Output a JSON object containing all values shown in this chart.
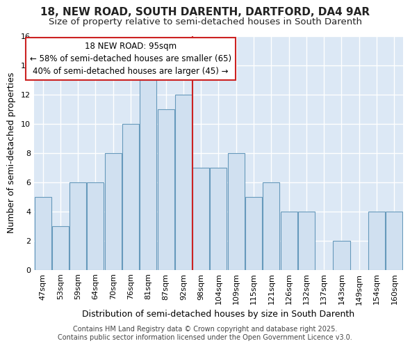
{
  "title": "18, NEW ROAD, SOUTH DARENTH, DARTFORD, DA4 9AR",
  "subtitle": "Size of property relative to semi-detached houses in South Darenth",
  "xlabel": "Distribution of semi-detached houses by size in South Darenth",
  "ylabel": "Number of semi-detached properties",
  "bar_labels": [
    "47sqm",
    "53sqm",
    "59sqm",
    "64sqm",
    "70sqm",
    "76sqm",
    "81sqm",
    "87sqm",
    "92sqm",
    "98sqm",
    "104sqm",
    "109sqm",
    "115sqm",
    "121sqm",
    "126sqm",
    "132sqm",
    "137sqm",
    "143sqm",
    "149sqm",
    "154sqm",
    "160sqm"
  ],
  "bar_values": [
    5,
    3,
    6,
    6,
    8,
    10,
    13,
    11,
    12,
    7,
    7,
    8,
    5,
    6,
    4,
    4,
    0,
    2,
    0,
    4,
    4
  ],
  "bar_color": "#d0e0f0",
  "bar_edge_color": "#6699bb",
  "red_line_index": 9,
  "annotation_title": "18 NEW ROAD: 95sqm",
  "annotation_line1": "← 58% of semi-detached houses are smaller (65)",
  "annotation_line2": "40% of semi-detached houses are larger (45) →",
  "annotation_box_facecolor": "#ffffff",
  "annotation_box_edgecolor": "#cc2222",
  "red_line_color": "#cc2222",
  "ylim": [
    0,
    16
  ],
  "yticks": [
    0,
    2,
    4,
    6,
    8,
    10,
    12,
    14,
    16
  ],
  "chart_bg_color": "#dce8f5",
  "fig_bg_color": "#ffffff",
  "footer": "Contains HM Land Registry data © Crown copyright and database right 2025.\nContains public sector information licensed under the Open Government Licence v3.0.",
  "title_fontsize": 11,
  "subtitle_fontsize": 9.5,
  "axis_label_fontsize": 9,
  "tick_fontsize": 8,
  "footer_fontsize": 7,
  "annotation_fontsize": 8.5
}
